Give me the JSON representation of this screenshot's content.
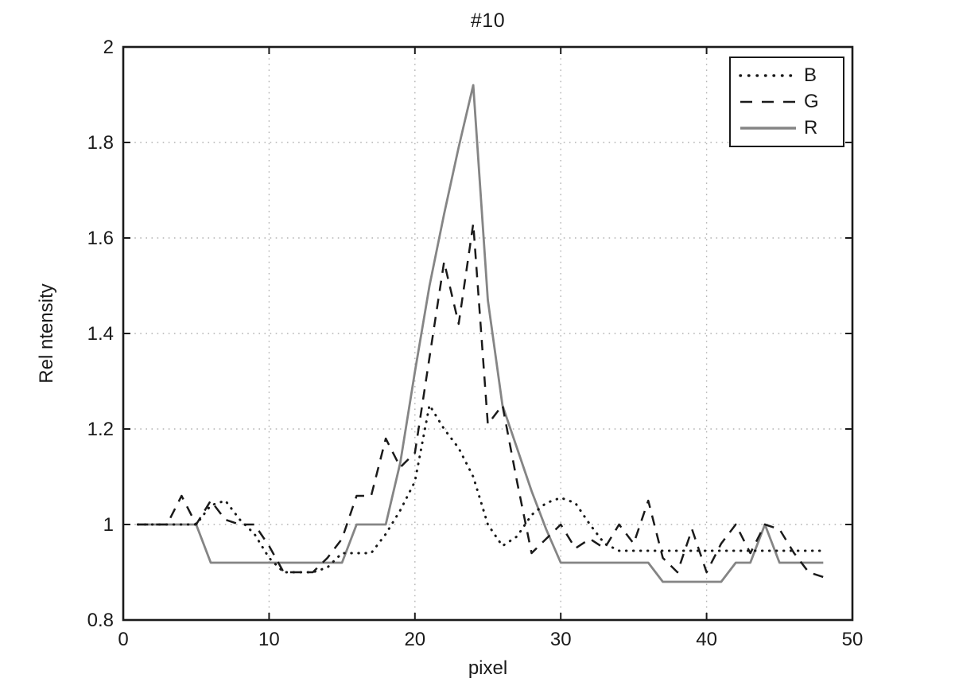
{
  "figure": {
    "title": "#10",
    "xlabel": "pixel",
    "ylabel": "Rel ntensity"
  },
  "chart_data": {
    "type": "line",
    "title": "#10",
    "xlabel": "pixel",
    "ylabel": "Rel ntensity",
    "xlim": [
      0,
      50
    ],
    "ylim": [
      0.8,
      2
    ],
    "xticks": [
      0,
      10,
      20,
      30,
      40,
      50
    ],
    "xtick_labels": [
      "0",
      "10",
      "20",
      "30",
      "40",
      "50"
    ],
    "yticks": [
      0.8,
      1,
      1.2,
      1.4,
      1.6,
      1.8,
      2
    ],
    "ytick_labels": [
      "0.8",
      "1",
      "1.2",
      "1.4",
      "1.6",
      "1.8",
      "2"
    ],
    "grid": true,
    "grid_color": "#b3b3b3",
    "axis_color": "#1a1a1a",
    "legend_position": "top-right",
    "x": [
      1,
      2,
      3,
      4,
      5,
      6,
      7,
      8,
      9,
      10,
      11,
      12,
      13,
      14,
      15,
      16,
      17,
      18,
      19,
      20,
      21,
      22,
      23,
      24,
      25,
      26,
      27,
      28,
      29,
      30,
      31,
      32,
      33,
      34,
      35,
      36,
      37,
      38,
      39,
      40,
      41,
      42,
      43,
      44,
      45,
      46,
      47,
      48
    ],
    "series": [
      {
        "name": "B",
        "line_style": "dotted",
        "color": "#1a1a1a",
        "values": [
          1.0,
          1.0,
          1.0,
          1.0,
          1.0,
          1.04,
          1.05,
          1.01,
          0.98,
          0.93,
          0.9,
          0.9,
          0.9,
          0.91,
          0.94,
          0.94,
          0.94,
          0.98,
          1.03,
          1.09,
          1.25,
          1.2,
          1.16,
          1.1,
          1.0,
          0.955,
          0.975,
          1.02,
          1.045,
          1.056,
          1.045,
          1.0,
          0.96,
          0.945,
          0.945,
          0.945,
          0.945,
          0.945,
          0.945,
          0.945,
          0.945,
          0.945,
          0.945,
          0.945,
          0.945,
          0.945,
          0.945,
          0.945
        ]
      },
      {
        "name": "G",
        "line_style": "dashed",
        "color": "#1a1a1a",
        "values": [
          1.0,
          1.0,
          1.0,
          1.06,
          1.0,
          1.05,
          1.01,
          1.0,
          1.0,
          0.955,
          0.9,
          0.9,
          0.9,
          0.93,
          0.97,
          1.06,
          1.06,
          1.18,
          1.12,
          1.15,
          1.35,
          1.55,
          1.42,
          1.63,
          1.21,
          1.25,
          1.09,
          0.94,
          0.97,
          1.0,
          0.95,
          0.97,
          0.95,
          1.0,
          0.96,
          1.05,
          0.93,
          0.9,
          0.99,
          0.9,
          0.96,
          1.0,
          0.94,
          1.0,
          0.99,
          0.94,
          0.9,
          0.89
        ]
      },
      {
        "name": "R",
        "line_style": "solid",
        "color": "#858585",
        "values": [
          1.0,
          1.0,
          1.0,
          1.0,
          1.0,
          0.92,
          0.92,
          0.92,
          0.92,
          0.92,
          0.92,
          0.92,
          0.92,
          0.92,
          0.92,
          1.0,
          1.0,
          1.0,
          1.13,
          1.32,
          1.5,
          1.65,
          1.79,
          1.92,
          1.47,
          1.25,
          1.16,
          1.07,
          0.99,
          0.92,
          0.92,
          0.92,
          0.92,
          0.92,
          0.92,
          0.92,
          0.88,
          0.88,
          0.88,
          0.88,
          0.88,
          0.92,
          0.92,
          1.0,
          0.92,
          0.92,
          0.92,
          0.92
        ]
      }
    ]
  }
}
